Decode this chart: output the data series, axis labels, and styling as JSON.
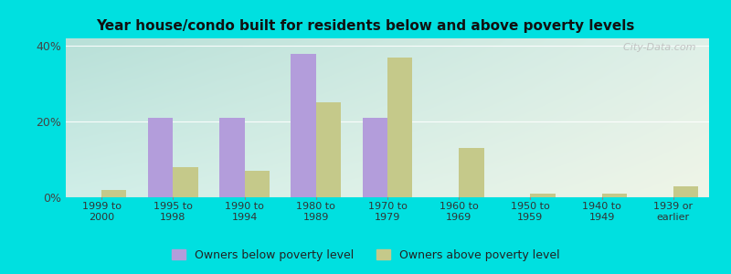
{
  "title": "Year house/condo built for residents below and above poverty levels",
  "categories": [
    "1999 to\n2000",
    "1995 to\n1998",
    "1990 to\n1994",
    "1980 to\n1989",
    "1970 to\n1979",
    "1960 to\n1969",
    "1950 to\n1959",
    "1940 to\n1949",
    "1939 or\nearlier"
  ],
  "below_poverty": [
    0,
    21,
    21,
    38,
    21,
    0,
    0,
    0,
    0
  ],
  "above_poverty": [
    2,
    8,
    7,
    25,
    37,
    13,
    1,
    1,
    3
  ],
  "below_color": "#b39ddb",
  "above_color": "#c5c98a",
  "ylim": [
    0,
    42
  ],
  "yticks": [
    0,
    20,
    40
  ],
  "ytick_labels": [
    "0%",
    "20%",
    "40%"
  ],
  "bar_width": 0.35,
  "watermark": "  City-Data.com",
  "legend_below_label": "Owners below poverty level",
  "legend_above_label": "Owners above poverty level",
  "outer_bg": "#00e0e0",
  "grad_top_left": "#b2dfdb",
  "grad_bottom_right": "#f5f5e8",
  "title_fontsize": 11,
  "tick_fontsize": 8,
  "legend_fontsize": 9
}
